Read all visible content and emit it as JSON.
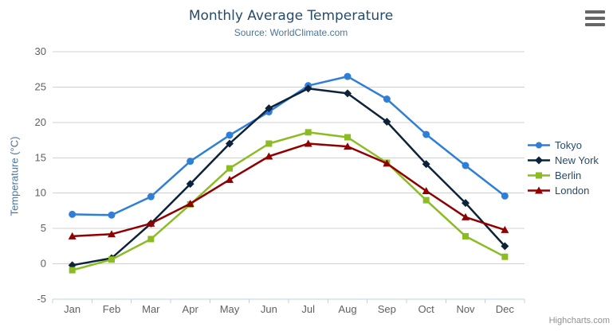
{
  "header": {
    "title": "Monthly Average Temperature",
    "subtitle": "Source: WorldClimate.com"
  },
  "export_menu": {
    "icon": "hamburger-icon"
  },
  "credit": {
    "label": "Highcharts.com"
  },
  "palette": {
    "title_text": "#274b6d",
    "subtitle_text": "#4d759e",
    "legend_text": "#274b6d",
    "credit_text": "#909090",
    "export_icon": "#666666"
  },
  "chart_data": {
    "type": "line",
    "title": "Monthly Average Temperature",
    "subtitle": "Source: WorldClimate.com",
    "xlabel": "",
    "ylabel": "Temperature (°C)",
    "ylim": [
      -5,
      30
    ],
    "yticks": [
      -5,
      0,
      5,
      10,
      15,
      20,
      25,
      30
    ],
    "grid": true,
    "legend_position": "right",
    "categories": [
      "Jan",
      "Feb",
      "Mar",
      "Apr",
      "May",
      "Jun",
      "Jul",
      "Aug",
      "Sep",
      "Oct",
      "Nov",
      "Dec"
    ],
    "axis": {
      "grid_color": "#d0d0d0",
      "line_color": "#c0d0e0",
      "label_color": "#606060",
      "title_color": "#4d759e"
    },
    "series": [
      {
        "name": "Tokyo",
        "color": "#2f7ed8",
        "marker": "circle",
        "values": [
          7.0,
          6.9,
          9.5,
          14.5,
          18.2,
          21.5,
          25.2,
          26.5,
          23.3,
          18.3,
          13.9,
          9.6
        ]
      },
      {
        "name": "New York",
        "color": "#0d233a",
        "marker": "diamond",
        "values": [
          -0.2,
          0.8,
          5.7,
          11.3,
          17.0,
          22.0,
          24.8,
          24.1,
          20.1,
          14.1,
          8.6,
          2.5
        ]
      },
      {
        "name": "Berlin",
        "color": "#8bbc21",
        "marker": "square",
        "values": [
          -0.9,
          0.6,
          3.5,
          8.4,
          13.5,
          17.0,
          18.6,
          17.9,
          14.3,
          9.0,
          3.9,
          1.0
        ]
      },
      {
        "name": "London",
        "color": "#910000",
        "marker": "triangle",
        "values": [
          3.9,
          4.2,
          5.7,
          8.5,
          11.9,
          15.2,
          17.0,
          16.6,
          14.2,
          10.3,
          6.6,
          4.8
        ]
      }
    ]
  }
}
